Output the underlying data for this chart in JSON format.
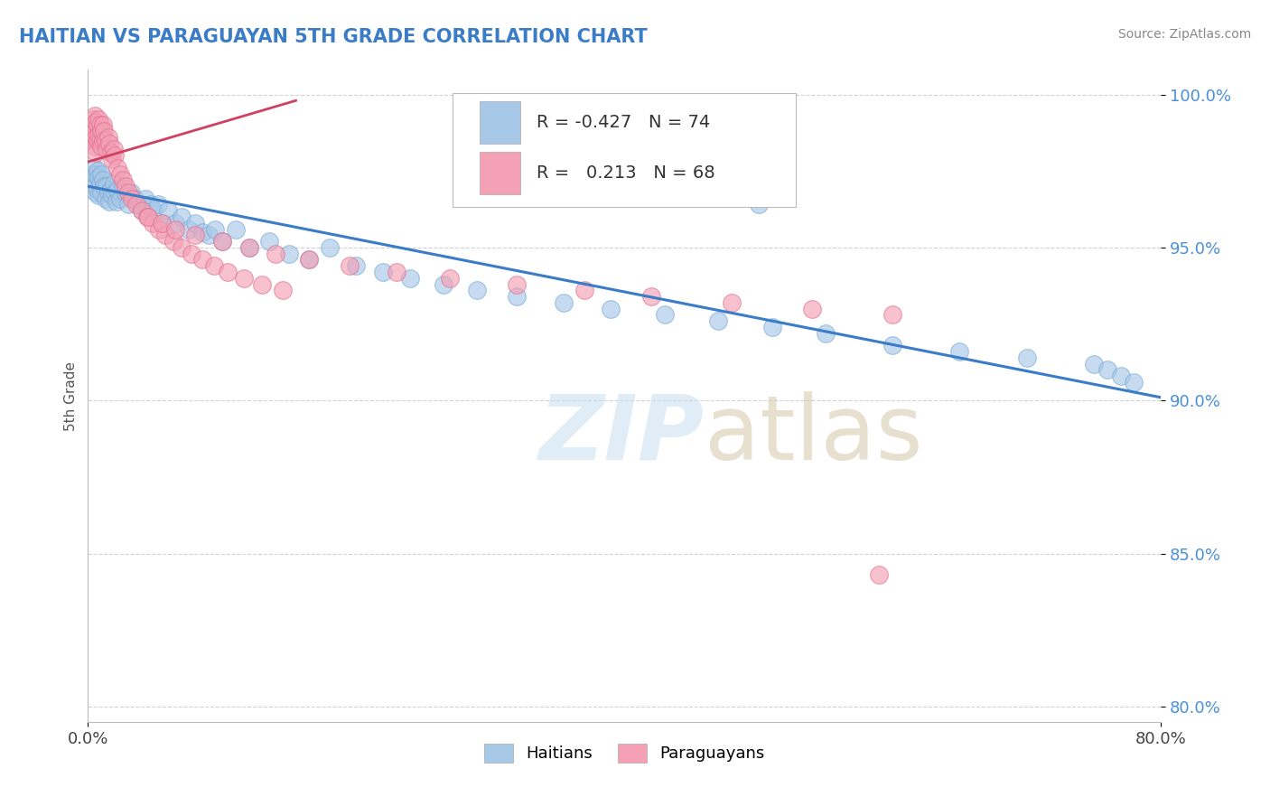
{
  "title": "HAITIAN VS PARAGUAYAN 5TH GRADE CORRELATION CHART",
  "source": "Source: ZipAtlas.com",
  "ylabel": "5th Grade",
  "xlim": [
    0.0,
    0.8
  ],
  "ylim": [
    0.795,
    1.008
  ],
  "yticks": [
    0.8,
    0.85,
    0.9,
    0.95,
    1.0
  ],
  "yticklabels": [
    "80.0%",
    "85.0%",
    "90.0%",
    "95.0%",
    "100.0%"
  ],
  "blue_color": "#A8C8E8",
  "blue_edge_color": "#7AABD4",
  "pink_color": "#F4A0B5",
  "pink_edge_color": "#E07090",
  "blue_line_color": "#3A7CC8",
  "pink_line_color": "#D04060",
  "legend_R_blue": "-0.427",
  "legend_N_blue": "74",
  "legend_R_pink": "0.213",
  "legend_N_pink": "68",
  "blue_trend_x": [
    0.0,
    0.8
  ],
  "blue_trend_y": [
    0.97,
    0.901
  ],
  "pink_trend_x": [
    0.0,
    0.155
  ],
  "pink_trend_y": [
    0.978,
    0.998
  ],
  "blue_scatter_x": [
    0.003,
    0.004,
    0.005,
    0.005,
    0.006,
    0.006,
    0.007,
    0.007,
    0.008,
    0.008,
    0.009,
    0.01,
    0.01,
    0.011,
    0.012,
    0.013,
    0.014,
    0.015,
    0.016,
    0.017,
    0.018,
    0.019,
    0.02,
    0.021,
    0.022,
    0.024,
    0.026,
    0.028,
    0.03,
    0.032,
    0.035,
    0.038,
    0.04,
    0.043,
    0.046,
    0.049,
    0.052,
    0.056,
    0.06,
    0.065,
    0.07,
    0.075,
    0.08,
    0.085,
    0.09,
    0.095,
    0.1,
    0.11,
    0.12,
    0.135,
    0.15,
    0.165,
    0.18,
    0.2,
    0.22,
    0.24,
    0.265,
    0.29,
    0.32,
    0.355,
    0.39,
    0.43,
    0.47,
    0.51,
    0.55,
    0.6,
    0.65,
    0.7,
    0.75,
    0.76,
    0.77,
    0.78,
    0.45,
    0.5
  ],
  "blue_scatter_y": [
    0.974,
    0.972,
    0.976,
    0.97,
    0.974,
    0.968,
    0.975,
    0.969,
    0.973,
    0.967,
    0.971,
    0.974,
    0.968,
    0.972,
    0.97,
    0.966,
    0.97,
    0.968,
    0.965,
    0.969,
    0.967,
    0.971,
    0.968,
    0.965,
    0.969,
    0.966,
    0.97,
    0.968,
    0.964,
    0.968,
    0.966,
    0.964,
    0.962,
    0.966,
    0.964,
    0.962,
    0.964,
    0.958,
    0.962,
    0.958,
    0.96,
    0.956,
    0.958,
    0.955,
    0.954,
    0.956,
    0.952,
    0.956,
    0.95,
    0.952,
    0.948,
    0.946,
    0.95,
    0.944,
    0.942,
    0.94,
    0.938,
    0.936,
    0.934,
    0.932,
    0.93,
    0.928,
    0.926,
    0.924,
    0.922,
    0.918,
    0.916,
    0.914,
    0.912,
    0.91,
    0.908,
    0.906,
    0.968,
    0.964
  ],
  "pink_scatter_x": [
    0.003,
    0.003,
    0.004,
    0.004,
    0.005,
    0.005,
    0.005,
    0.006,
    0.006,
    0.006,
    0.007,
    0.007,
    0.008,
    0.008,
    0.009,
    0.009,
    0.01,
    0.01,
    0.011,
    0.011,
    0.012,
    0.013,
    0.014,
    0.015,
    0.016,
    0.017,
    0.018,
    0.019,
    0.02,
    0.022,
    0.024,
    0.026,
    0.028,
    0.03,
    0.033,
    0.036,
    0.04,
    0.044,
    0.048,
    0.053,
    0.058,
    0.064,
    0.07,
    0.077,
    0.085,
    0.094,
    0.104,
    0.116,
    0.13,
    0.145,
    0.045,
    0.055,
    0.065,
    0.08,
    0.1,
    0.12,
    0.14,
    0.165,
    0.195,
    0.23,
    0.27,
    0.32,
    0.37,
    0.42,
    0.48,
    0.54,
    0.6,
    0.59
  ],
  "pink_scatter_y": [
    0.99,
    0.985,
    0.992,
    0.986,
    0.993,
    0.988,
    0.983,
    0.991,
    0.986,
    0.981,
    0.99,
    0.985,
    0.992,
    0.987,
    0.99,
    0.985,
    0.988,
    0.983,
    0.99,
    0.985,
    0.988,
    0.985,
    0.982,
    0.986,
    0.984,
    0.981,
    0.979,
    0.982,
    0.98,
    0.976,
    0.974,
    0.972,
    0.97,
    0.968,
    0.966,
    0.964,
    0.962,
    0.96,
    0.958,
    0.956,
    0.954,
    0.952,
    0.95,
    0.948,
    0.946,
    0.944,
    0.942,
    0.94,
    0.938,
    0.936,
    0.96,
    0.958,
    0.956,
    0.954,
    0.952,
    0.95,
    0.948,
    0.946,
    0.944,
    0.942,
    0.94,
    0.938,
    0.936,
    0.934,
    0.932,
    0.93,
    0.928,
    0.843
  ]
}
